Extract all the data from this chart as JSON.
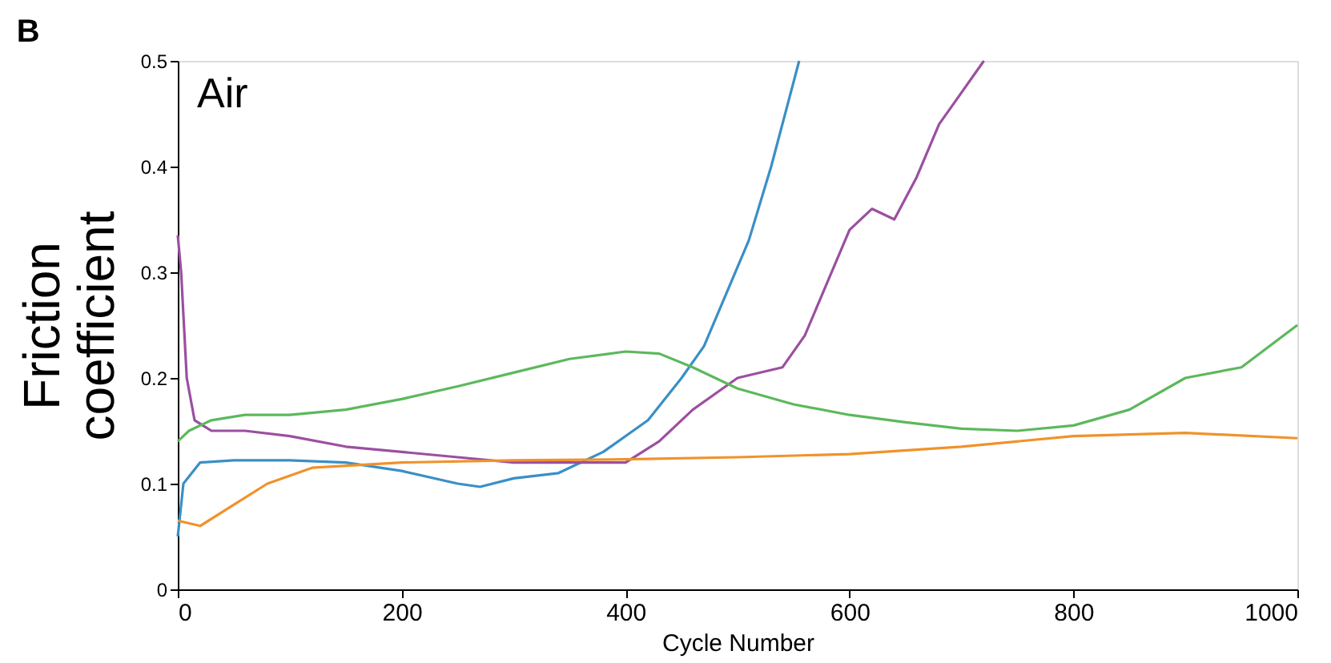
{
  "chart_data": {
    "type": "line",
    "title": "B",
    "xlabel": "Cycle Number",
    "ylabel": "Friction coefficient",
    "annotations": [
      "Air"
    ],
    "xlim": [
      0,
      1000
    ],
    "xticks": [
      0,
      200,
      400,
      600,
      800,
      1000
    ],
    "ylim": [
      0,
      0.5
    ],
    "yticks": [
      0,
      0.1,
      0.2,
      0.3,
      0.4,
      0.5
    ],
    "grid": false,
    "series": [
      {
        "color": "#3a8fc7",
        "x": [
          0,
          5,
          20,
          50,
          100,
          150,
          200,
          250,
          270,
          300,
          340,
          380,
          420,
          450,
          470,
          490,
          510,
          530,
          545,
          555
        ],
        "values": [
          0.05,
          0.1,
          0.12,
          0.122,
          0.122,
          0.12,
          0.112,
          0.1,
          0.097,
          0.105,
          0.11,
          0.13,
          0.16,
          0.2,
          0.23,
          0.28,
          0.33,
          0.4,
          0.46,
          0.5
        ]
      },
      {
        "color": "#9b4fa0",
        "x": [
          0,
          3,
          8,
          15,
          30,
          60,
          100,
          150,
          200,
          250,
          300,
          350,
          400,
          430,
          460,
          500,
          540,
          560,
          580,
          600,
          620,
          640,
          660,
          680,
          700,
          720
        ],
        "values": [
          0.335,
          0.3,
          0.2,
          0.16,
          0.15,
          0.15,
          0.145,
          0.135,
          0.13,
          0.125,
          0.12,
          0.12,
          0.12,
          0.14,
          0.17,
          0.2,
          0.21,
          0.24,
          0.29,
          0.34,
          0.36,
          0.35,
          0.39,
          0.44,
          0.47,
          0.5
        ]
      },
      {
        "color": "#5cb85c",
        "x": [
          0,
          10,
          30,
          60,
          100,
          150,
          200,
          250,
          300,
          350,
          400,
          430,
          460,
          500,
          550,
          600,
          650,
          700,
          750,
          800,
          850,
          900,
          950,
          1000
        ],
        "values": [
          0.14,
          0.15,
          0.16,
          0.165,
          0.165,
          0.17,
          0.18,
          0.192,
          0.205,
          0.218,
          0.225,
          0.223,
          0.21,
          0.19,
          0.175,
          0.165,
          0.158,
          0.152,
          0.15,
          0.155,
          0.17,
          0.2,
          0.21,
          0.25
        ]
      },
      {
        "color": "#f0922b",
        "x": [
          0,
          20,
          50,
          80,
          120,
          200,
          300,
          400,
          500,
          600,
          700,
          800,
          900,
          1000
        ],
        "values": [
          0.065,
          0.06,
          0.08,
          0.1,
          0.115,
          0.12,
          0.122,
          0.123,
          0.125,
          0.128,
          0.135,
          0.145,
          0.148,
          0.143
        ]
      }
    ]
  }
}
